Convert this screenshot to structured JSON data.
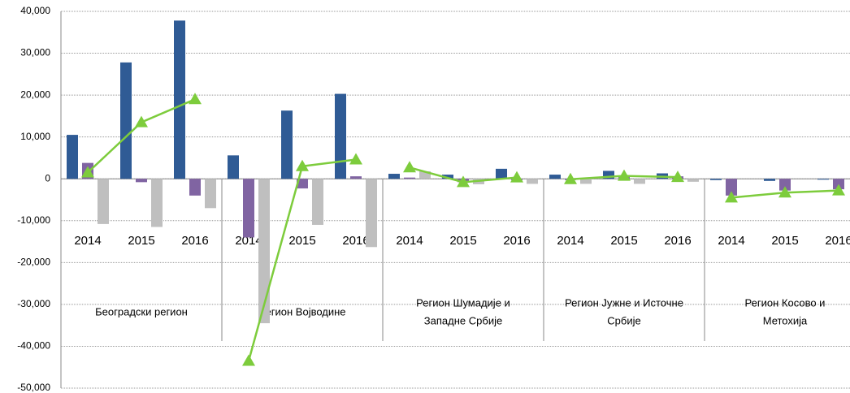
{
  "chart_data": {
    "type": "bar_line",
    "categories": [
      "2014",
      "2015",
      "2016",
      "2014",
      "2015",
      "2016",
      "2014",
      "2015",
      "2016",
      "2014",
      "2015",
      "2016",
      "2014",
      "2015",
      "2016"
    ],
    "groups": [
      {
        "label": [
          "Београдски регион"
        ],
        "size": 3
      },
      {
        "label": [
          "Регион Војводине"
        ],
        "size": 3
      },
      {
        "label": [
          "Регион Шумадије и",
          "Западне Србије"
        ],
        "size": 3
      },
      {
        "label": [
          "Регион Јужне и Источне",
          "Србије"
        ],
        "size": 3
      },
      {
        "label": [
          "Регион Косово и",
          "Метохија"
        ],
        "size": 3
      }
    ],
    "series": [
      {
        "color": "#2f5b95",
        "kind": "bar",
        "values": [
          10500,
          27800,
          37800,
          5600,
          16300,
          20300,
          1200,
          1000,
          2400,
          1000,
          1900,
          1300,
          -300,
          -500,
          -200
        ]
      },
      {
        "color": "#8064a2",
        "kind": "bar",
        "values": [
          3800,
          -800,
          -4000,
          -14000,
          -2300,
          600,
          300,
          -800,
          -300,
          -300,
          700,
          600,
          -4000,
          -2800,
          -2500
        ]
      },
      {
        "color": "#bfbfbf",
        "kind": "bar",
        "values": [
          -10800,
          -11500,
          -7000,
          -34500,
          -11000,
          -16300,
          1800,
          -1300,
          -1200,
          -1200,
          -1200,
          -700,
          0,
          0,
          0
        ]
      },
      {
        "color": "#7dcc3c",
        "kind": "line",
        "values": [
          1500,
          13500,
          19000,
          -43500,
          3000,
          4600,
          2700,
          -800,
          300,
          -100,
          700,
          400,
          -4500,
          -3300,
          -2800
        ]
      }
    ],
    "ylim": [
      -50000,
      40000
    ],
    "yticks": [
      {
        "value": -50000,
        "label": "-50,000"
      },
      {
        "value": -40000,
        "label": "-40,000"
      },
      {
        "value": -30000,
        "label": "-30,000"
      },
      {
        "value": -20000,
        "label": "-20,000"
      },
      {
        "value": -10000,
        "label": "-10,000"
      },
      0,
      {
        "value": 10000,
        "label": "10,000"
      },
      {
        "value": 20000,
        "label": "20,000"
      },
      {
        "value": 30000,
        "label": "30,000"
      },
      {
        "value": 40000,
        "label": "40,000"
      }
    ],
    "grid": true
  }
}
